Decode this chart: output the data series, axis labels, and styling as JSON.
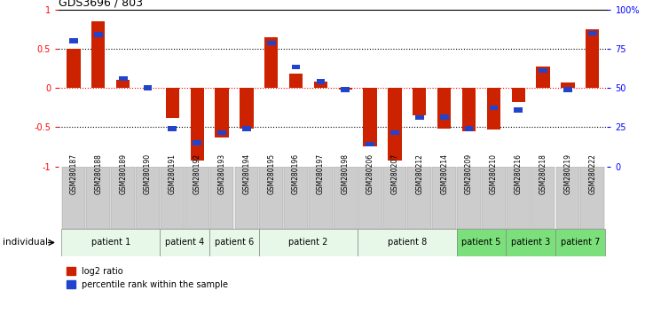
{
  "title": "GDS3696 / 803",
  "samples": [
    "GSM280187",
    "GSM280188",
    "GSM280189",
    "GSM280190",
    "GSM280191",
    "GSM280192",
    "GSM280193",
    "GSM280194",
    "GSM280195",
    "GSM280196",
    "GSM280197",
    "GSM280198",
    "GSM280206",
    "GSM280207",
    "GSM280212",
    "GSM280214",
    "GSM280209",
    "GSM280210",
    "GSM280216",
    "GSM280218",
    "GSM280219",
    "GSM280222"
  ],
  "log2_ratio": [
    0.5,
    0.85,
    0.1,
    0.0,
    -0.38,
    -0.93,
    -0.63,
    -0.52,
    0.65,
    0.18,
    0.08,
    -0.02,
    -0.75,
    -0.93,
    -0.35,
    -0.52,
    -0.55,
    -0.53,
    -0.18,
    0.27,
    0.07,
    0.75
  ],
  "percentile_rank": [
    0.6,
    0.68,
    0.12,
    0.0,
    -0.52,
    -0.7,
    -0.57,
    -0.52,
    0.57,
    0.27,
    0.08,
    -0.02,
    -0.72,
    -0.57,
    -0.38,
    -0.37,
    -0.52,
    -0.25,
    -0.28,
    0.22,
    -0.02,
    0.7
  ],
  "patients": [
    {
      "label": "patient 1",
      "start": 0,
      "end": 4,
      "color": "#e8f8e8"
    },
    {
      "label": "patient 4",
      "start": 4,
      "end": 6,
      "color": "#e8f8e8"
    },
    {
      "label": "patient 6",
      "start": 6,
      "end": 8,
      "color": "#e8f8e8"
    },
    {
      "label": "patient 2",
      "start": 8,
      "end": 12,
      "color": "#e8f8e8"
    },
    {
      "label": "patient 8",
      "start": 12,
      "end": 16,
      "color": "#e8f8e8"
    },
    {
      "label": "patient 5",
      "start": 16,
      "end": 18,
      "color": "#7be07b"
    },
    {
      "label": "patient 3",
      "start": 18,
      "end": 20,
      "color": "#7be07b"
    },
    {
      "label": "patient 7",
      "start": 20,
      "end": 22,
      "color": "#7be07b"
    }
  ],
  "bar_color_red": "#cc2200",
  "bar_color_blue": "#2244cc",
  "ylim": [
    -1,
    1
  ],
  "yticks_left": [
    -1,
    -0.5,
    0,
    0.5,
    1
  ],
  "ytick_labels_left": [
    "-1",
    "-0.5",
    "0",
    "0.5",
    "1"
  ],
  "yticks_right": [
    -1,
    -0.5,
    0,
    0.5,
    1
  ],
  "ytick_labels_right": [
    "0",
    "25",
    "50",
    "75",
    "100%"
  ],
  "bar_width": 0.55,
  "blue_bar_width": 0.35,
  "blue_bar_height": 0.06,
  "sample_box_color": "#cccccc",
  "figure_bg": "#ffffff"
}
